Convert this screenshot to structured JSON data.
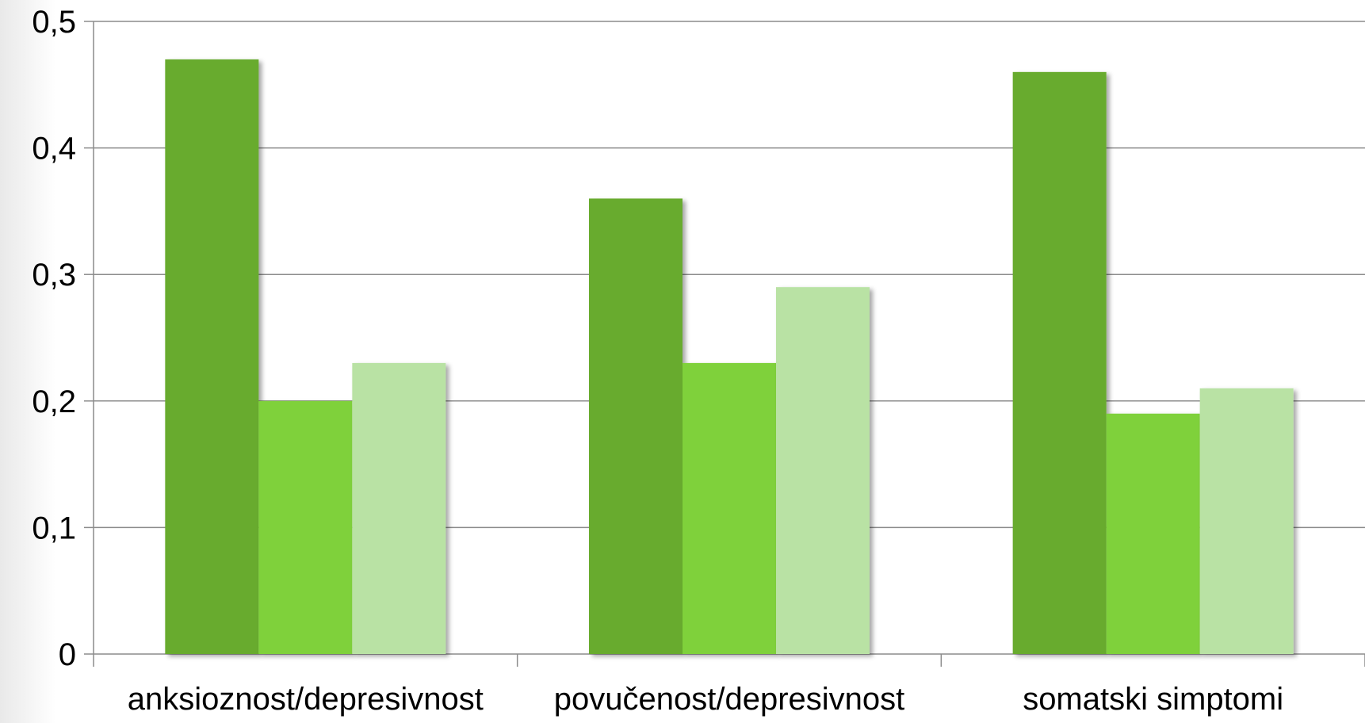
{
  "chart_data": {
    "type": "bar",
    "categories": [
      "anksioznost/depresivnost",
      "povučenost/depresivnost",
      "somatski simptomi"
    ],
    "series": [
      {
        "values": [
          0.47,
          0.36,
          0.46
        ],
        "color": "#67ab2e"
      },
      {
        "values": [
          0.2,
          0.23,
          0.19
        ],
        "color": "#7fd13b"
      },
      {
        "values": [
          0.23,
          0.29,
          0.21
        ],
        "color": "#b9e2a4"
      }
    ],
    "yticks": [
      "0",
      "0,1",
      "0,2",
      "0,3",
      "0,4",
      "0,5"
    ],
    "ylim": [
      0,
      0.5
    ],
    "grid": true,
    "legend": "none"
  }
}
